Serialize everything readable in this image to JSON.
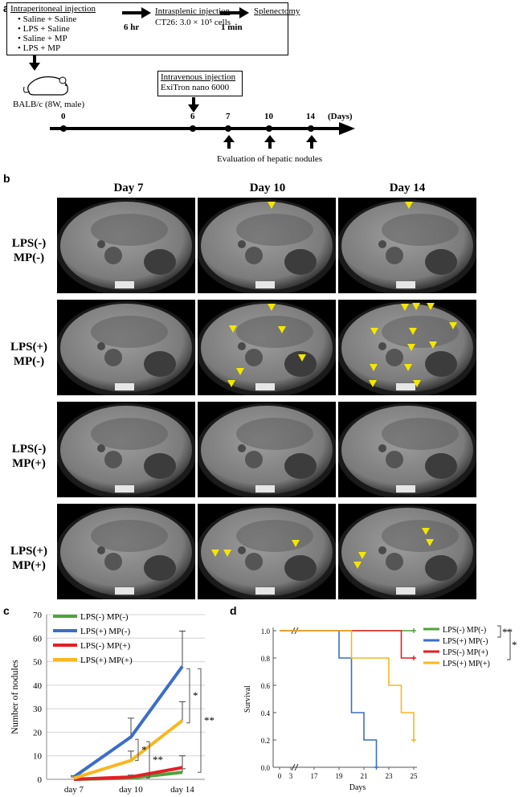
{
  "panel_a": {
    "label": "a",
    "ip_title": "Intraperitoneal injection",
    "ip_items": [
      "• Saline + Saline",
      "• LPS + Saline",
      "• Saline + MP",
      "• LPS + MP"
    ],
    "time1": "6 hr",
    "is_title": "Intrasplenic injection",
    "is_detail": "CT26: 3.0 × 10⁵ cells",
    "time2": "1 min",
    "splenectomy": "Splenectomy",
    "iv_title": "Intravenous injection",
    "iv_detail": "ExiTron nano 6000",
    "mouse_label": "BALB/c (8W, male)",
    "timeline_ticks": [
      "0",
      "6",
      "7",
      "10",
      "14"
    ],
    "timeline_unit": "(Days)",
    "evaluation": "Evaluation of hepatic nodules"
  },
  "panel_b": {
    "label": "b",
    "columns": [
      "Day 7",
      "Day 10",
      "Day 14"
    ],
    "rows": [
      {
        "l1": "LPS(-)",
        "l2": "MP(-)"
      },
      {
        "l1": "LPS(+)",
        "l2": "MP(-)"
      },
      {
        "l1": "LPS(-)",
        "l2": "MP(+)"
      },
      {
        "l1": "LPS(+)",
        "l2": "MP(+)"
      }
    ]
  },
  "panel_c": {
    "label": "c",
    "chart_data": {
      "type": "line",
      "categories": [
        "day 7",
        "day 10",
        "day 14"
      ],
      "ylabel": "Number of nodules",
      "ylim": [
        0,
        70
      ],
      "yticks": [
        0,
        10,
        20,
        30,
        40,
        50,
        60,
        70
      ],
      "series": [
        {
          "name": "LPS(-) MP(-)",
          "color": "#4ea33a",
          "values": [
            0,
            0.5,
            3
          ],
          "err": [
            0,
            0.5,
            1.5
          ]
        },
        {
          "name": "LPS(+) MP(-)",
          "color": "#3a6fc4",
          "values": [
            1,
            18,
            48
          ],
          "err": [
            0.5,
            8,
            15
          ]
        },
        {
          "name": "LPS(-) MP(+)",
          "color": "#e21f26",
          "values": [
            0,
            1,
            5
          ],
          "err": [
            0,
            0.8,
            5
          ]
        },
        {
          "name": "LPS(+) MP(+)",
          "color": "#f7b720",
          "values": [
            0.5,
            8,
            25
          ],
          "err": [
            0.5,
            4,
            8
          ]
        }
      ],
      "significance": [
        "*",
        "**",
        "*",
        "**"
      ]
    }
  },
  "panel_d": {
    "label": "d",
    "chart_data": {
      "type": "line",
      "xlabel": "Days",
      "ylabel": "Survival",
      "xticks": [
        "0",
        "3",
        "17",
        "19",
        "21",
        "23",
        "25"
      ],
      "yticks": [
        "0.0",
        "0.2",
        "0.4",
        "0.6",
        "0.8",
        "1.0"
      ],
      "series": [
        {
          "name": "LPS(-) MP(-)",
          "color": "#4ea33a",
          "steps": [
            [
              0,
              1.0
            ],
            [
              25,
              1.0
            ]
          ]
        },
        {
          "name": "LPS(+) MP(-)",
          "color": "#3a6fc4",
          "steps": [
            [
              0,
              1.0
            ],
            [
              19,
              1.0
            ],
            [
              19,
              0.8
            ],
            [
              20,
              0.8
            ],
            [
              20,
              0.4
            ],
            [
              21,
              0.4
            ],
            [
              21,
              0.2
            ],
            [
              22,
              0.2
            ],
            [
              22,
              0.0
            ]
          ]
        },
        {
          "name": "LPS(-) MP(+)",
          "color": "#e21f26",
          "steps": [
            [
              0,
              1.0
            ],
            [
              24,
              1.0
            ],
            [
              24,
              0.8
            ],
            [
              25,
              0.8
            ]
          ]
        },
        {
          "name": "LPS(+) MP(+)",
          "color": "#f7b720",
          "steps": [
            [
              0,
              1.0
            ],
            [
              20,
              1.0
            ],
            [
              20,
              0.8
            ],
            [
              23,
              0.8
            ],
            [
              23,
              0.6
            ],
            [
              24,
              0.6
            ],
            [
              24,
              0.4
            ],
            [
              25,
              0.4
            ],
            [
              25,
              0.2
            ]
          ]
        }
      ],
      "significance": [
        "**",
        "*"
      ]
    }
  }
}
